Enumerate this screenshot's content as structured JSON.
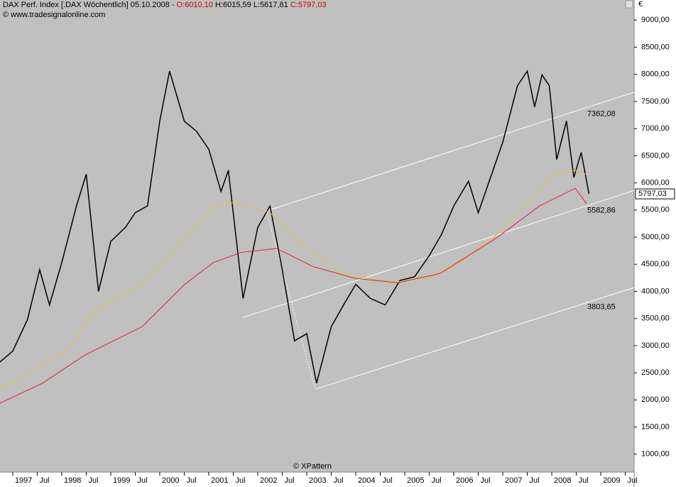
{
  "header": {
    "title": "DAX Perf. Index [.DAX  Wöchentlich] 05.10.2008 - ",
    "open": "O:6010,10",
    "high_low": " H:6015,59 L:5617,81 ",
    "close": "C:5797,03",
    "source": "© www.tradesignalonline.com",
    "currency": "€",
    "watermark": "© XPattern"
  },
  "chart_data": {
    "type": "line",
    "xlim": [
      1996.74,
      2009.68
    ],
    "ylim": [
      670,
      9370
    ],
    "xticks": [
      {
        "value": 1997,
        "label": "1997"
      },
      {
        "value": 1997.5,
        "label": "Jul"
      },
      {
        "value": 1998,
        "label": "1998"
      },
      {
        "value": 1998.5,
        "label": "Jul"
      },
      {
        "value": 1999,
        "label": "1999"
      },
      {
        "value": 1999.5,
        "label": "Jul"
      },
      {
        "value": 2000,
        "label": "2000"
      },
      {
        "value": 2000.5,
        "label": "Jul"
      },
      {
        "value": 2001,
        "label": "2001"
      },
      {
        "value": 2001.5,
        "label": "Jul"
      },
      {
        "value": 2002,
        "label": "2002"
      },
      {
        "value": 2002.5,
        "label": "Jul"
      },
      {
        "value": 2003,
        "label": "2003"
      },
      {
        "value": 2003.5,
        "label": "Jul"
      },
      {
        "value": 2004,
        "label": "2004"
      },
      {
        "value": 2004.5,
        "label": "Jul"
      },
      {
        "value": 2005,
        "label": "2005"
      },
      {
        "value": 2005.5,
        "label": "Jul"
      },
      {
        "value": 2006,
        "label": "2006"
      },
      {
        "value": 2006.5,
        "label": "Jul"
      },
      {
        "value": 2007,
        "label": "2007"
      },
      {
        "value": 2007.5,
        "label": "Jul"
      },
      {
        "value": 2008,
        "label": "2008"
      },
      {
        "value": 2008.5,
        "label": "Jul"
      },
      {
        "value": 2009,
        "label": "2009"
      },
      {
        "value": 2009.5,
        "label": "Jul"
      }
    ],
    "yticks": [
      {
        "value": 1000,
        "label": "1000,00"
      },
      {
        "value": 1500,
        "label": "1500,00"
      },
      {
        "value": 2000,
        "label": "2000,00"
      },
      {
        "value": 2500,
        "label": "2500,00"
      },
      {
        "value": 3000,
        "label": "3000,00"
      },
      {
        "value": 3500,
        "label": "3500,00"
      },
      {
        "value": 4000,
        "label": "4000,00"
      },
      {
        "value": 4500,
        "label": "4500,00"
      },
      {
        "value": 5000,
        "label": "5000,00"
      },
      {
        "value": 5500,
        "label": "5500,00"
      },
      {
        "value": 6000,
        "label": "6000,00"
      },
      {
        "value": 6500,
        "label": "6500,00"
      },
      {
        "value": 7000,
        "label": "7000,00"
      },
      {
        "value": 7500,
        "label": "7500,00"
      },
      {
        "value": 8000,
        "label": "8000,00"
      },
      {
        "value": 8500,
        "label": "8500,00"
      },
      {
        "value": 9000,
        "label": "9000,00"
      }
    ],
    "series": [
      {
        "color": "#000000",
        "x": [
          1996.74,
          1997.0,
          1997.3,
          1997.55,
          1997.75,
          1998.0,
          1998.3,
          1998.5,
          1998.75,
          1999.0,
          1999.3,
          1999.5,
          1999.75,
          2000.0,
          2000.2,
          2000.5,
          2000.75,
          2001.0,
          2001.25,
          2001.4,
          2001.7,
          2002.0,
          2002.25,
          2002.5,
          2002.75,
          2003.0,
          2003.2,
          2003.5,
          2003.75,
          2004.0,
          2004.3,
          2004.6,
          2004.9,
          2005.2,
          2005.5,
          2005.75,
          2006.0,
          2006.3,
          2006.5,
          2006.75,
          2007.0,
          2007.3,
          2007.5,
          2007.65,
          2007.8,
          2007.95,
          2008.1,
          2008.3,
          2008.45,
          2008.6,
          2008.76
        ],
        "values": [
          2700,
          2900,
          3480,
          4400,
          3750,
          4530,
          5575,
          6160,
          4000,
          4920,
          5180,
          5450,
          5575,
          7140,
          8060,
          7140,
          6950,
          6620,
          5840,
          6230,
          3870,
          5180,
          5575,
          4400,
          3090,
          3220,
          2310,
          3350,
          3750,
          4130,
          3870,
          3750,
          4200,
          4270,
          4660,
          5050,
          5575,
          6030,
          5450,
          6100,
          6750,
          7790,
          8060,
          7400,
          7990,
          7790,
          6430,
          7140,
          6100,
          6560,
          5797
        ]
      },
      {
        "color": "#e8c040",
        "x": [
          1996.74,
          1998.19,
          1998.62,
          1999.64,
          2000.22,
          2001.09,
          2001.52,
          2002.25,
          2002.83,
          2003.7,
          2004.71,
          2005.43,
          2006.01,
          2006.88,
          2007.46,
          2008.04,
          2008.48,
          2008.7
        ],
        "values": [
          2180,
          2960,
          3610,
          4130,
          4660,
          5575,
          5640,
          5450,
          4920,
          4330,
          4160,
          4230,
          4460,
          5050,
          5575,
          6160,
          6230,
          6160
        ]
      },
      {
        "color": "#e02030",
        "x": [
          1996.74,
          1997.61,
          1998.48,
          1999.64,
          2000.51,
          2001.09,
          2001.67,
          2002.39,
          2003.12,
          2003.99,
          2004.86,
          2005.72,
          2006.88,
          2007.75,
          2008.48,
          2008.71
        ],
        "values": [
          1940,
          2310,
          2830,
          3350,
          4130,
          4530,
          4720,
          4790,
          4460,
          4240,
          4160,
          4330,
          4990,
          5575,
          5900,
          5615
        ]
      }
    ],
    "trendlines": [
      {
        "x": [
          2002.17,
          2009.68
        ],
        "values": [
          5480,
          7670
        ]
      },
      {
        "x": [
          2001.7,
          2009.68
        ],
        "values": [
          3520,
          5860
        ]
      },
      {
        "x": [
          2003.18,
          2009.68
        ],
        "values": [
          2200,
          4070
        ]
      }
    ],
    "annotations": [
      {
        "value": 7362.08,
        "label": "7362,08"
      },
      {
        "value": 5582.86,
        "label": "5582,86"
      },
      {
        "value": 3803.65,
        "label": "3803,65"
      }
    ],
    "last_price": {
      "value": 5797.03,
      "label": "5797,03"
    }
  }
}
